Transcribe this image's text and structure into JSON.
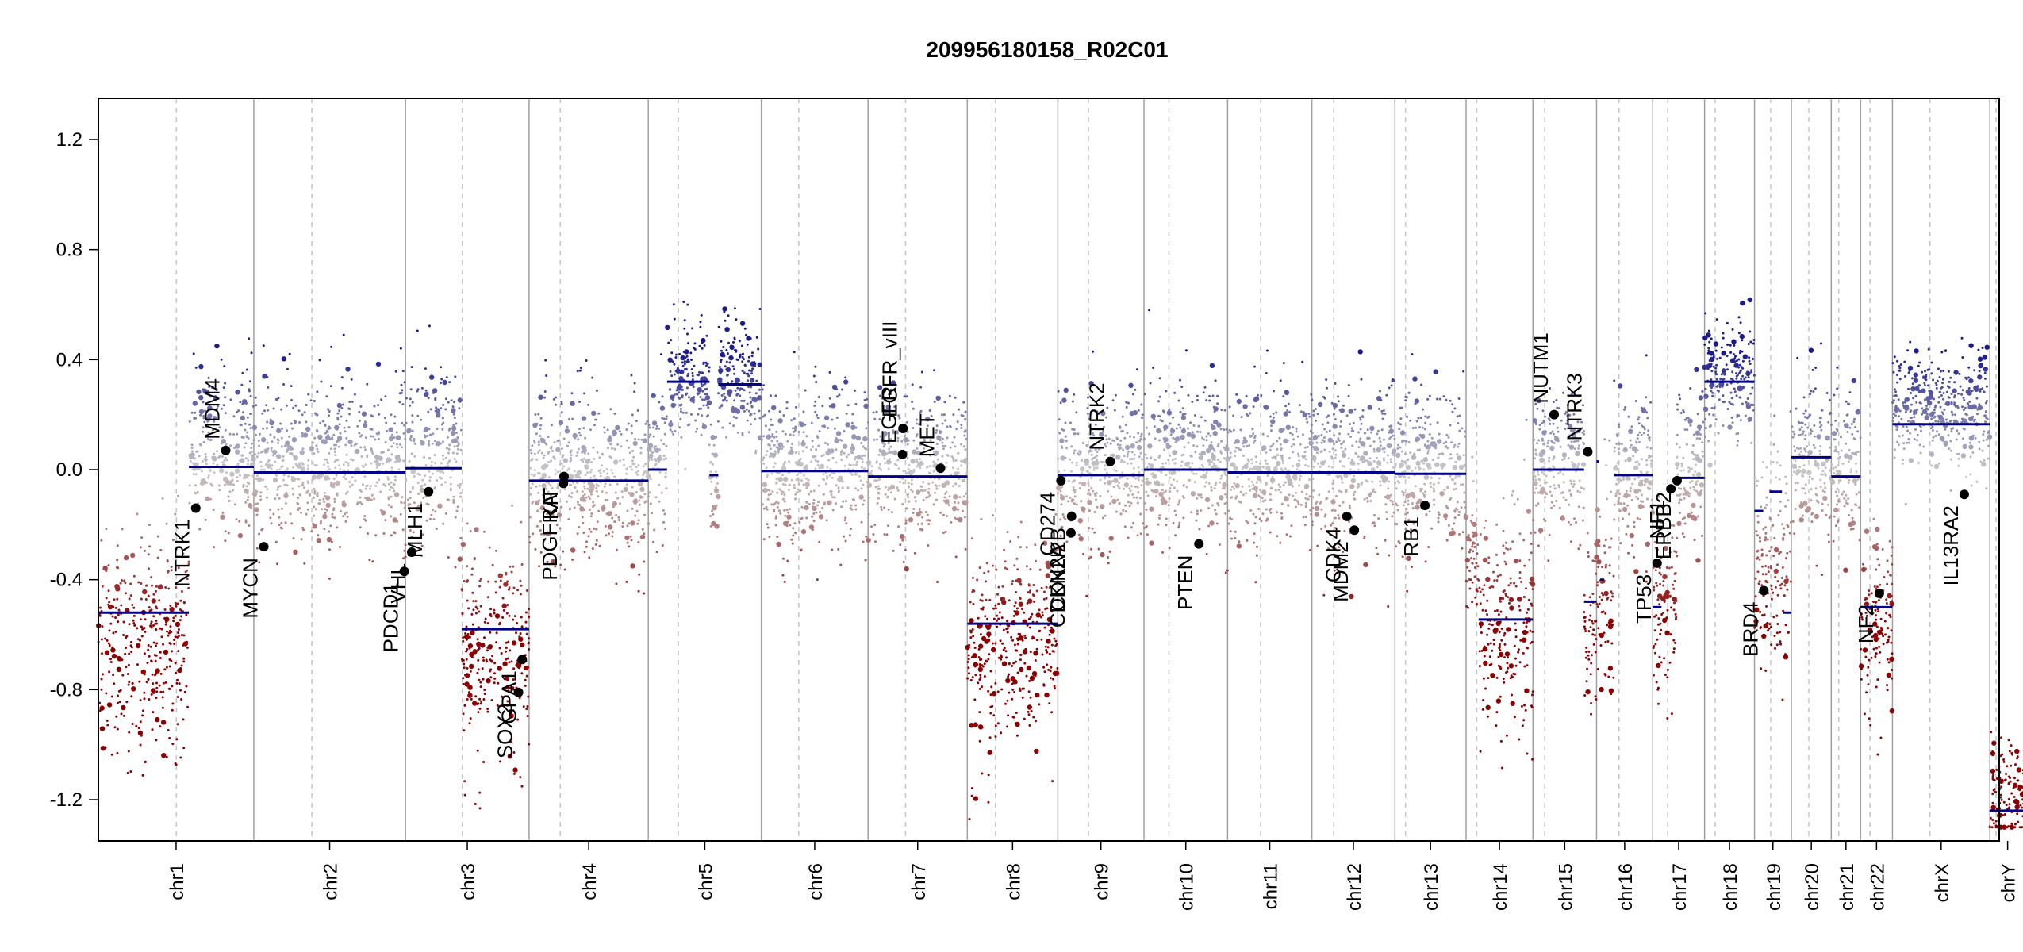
{
  "chart_data": {
    "type": "scatter",
    "title": "209956180158_R02C01",
    "xlabel": "",
    "ylabel": "",
    "ylim": [
      -1.35,
      1.35
    ],
    "yticks": [
      1.2,
      0.8,
      0.4,
      0.0,
      -0.4,
      -0.8,
      -1.2
    ],
    "ytick_labels": [
      "1.2",
      "0.8",
      "0.4",
      "0.0",
      "-0.4",
      "-0.8",
      "-1.2"
    ],
    "xlim": [
      0,
      3045
    ],
    "colors": {
      "gain": "#1a1a8c",
      "loss": "#8b0000",
      "neutral": "#c8c8c8",
      "segment": "#00008b",
      "gene_point": "#000000"
    },
    "chromosomes": [
      {
        "name": "chr1",
        "length": 249,
        "centromere": 125
      },
      {
        "name": "chr2",
        "length": 243,
        "centromere": 93
      },
      {
        "name": "chr3",
        "length": 198,
        "centromere": 91
      },
      {
        "name": "chr4",
        "length": 191,
        "centromere": 50
      },
      {
        "name": "chr5",
        "length": 181,
        "centromere": 48
      },
      {
        "name": "chr6",
        "length": 171,
        "centromere": 60
      },
      {
        "name": "chr7",
        "length": 159,
        "centromere": 60
      },
      {
        "name": "chr8",
        "length": 145,
        "centromere": 45
      },
      {
        "name": "chr9",
        "length": 138,
        "centromere": 49
      },
      {
        "name": "chr10",
        "length": 134,
        "centromere": 40
      },
      {
        "name": "chr11",
        "length": 135,
        "centromere": 53
      },
      {
        "name": "chr12",
        "length": 133,
        "centromere": 35
      },
      {
        "name": "chr13",
        "length": 114,
        "centromere": 17
      },
      {
        "name": "chr14",
        "length": 107,
        "centromere": 17
      },
      {
        "name": "chr15",
        "length": 102,
        "centromere": 19
      },
      {
        "name": "chr16",
        "length": 90,
        "centromere": 36
      },
      {
        "name": "chr17",
        "length": 83,
        "centromere": 24
      },
      {
        "name": "chr18",
        "length": 80,
        "centromere": 17
      },
      {
        "name": "chr19",
        "length": 59,
        "centromere": 26
      },
      {
        "name": "chr20",
        "length": 64,
        "centromere": 28
      },
      {
        "name": "chr21",
        "length": 47,
        "centromere": 12
      },
      {
        "name": "chr22",
        "length": 51,
        "centromere": 15
      },
      {
        "name": "chrX",
        "length": 156,
        "centromere": 60
      },
      {
        "name": "chrY",
        "length": 57,
        "centromere": 10
      }
    ],
    "segments": [
      {
        "chr": "chr1",
        "start": 0,
        "end": 145,
        "value": -0.52
      },
      {
        "chr": "chr1",
        "start": 145,
        "end": 249,
        "value": 0.01
      },
      {
        "chr": "chr2",
        "start": 0,
        "end": 243,
        "value": -0.01
      },
      {
        "chr": "chr3",
        "start": 0,
        "end": 90,
        "value": 0.005
      },
      {
        "chr": "chr3",
        "start": 90,
        "end": 198,
        "value": -0.58
      },
      {
        "chr": "chr4",
        "start": 0,
        "end": 191,
        "value": -0.04
      },
      {
        "chr": "chr5",
        "start": 0,
        "end": 30,
        "value": 0.0
      },
      {
        "chr": "chr5",
        "start": 30,
        "end": 98,
        "value": 0.32
      },
      {
        "chr": "chr5",
        "start": 98,
        "end": 112,
        "value": -0.02
      },
      {
        "chr": "chr5",
        "start": 112,
        "end": 181,
        "value": 0.31
      },
      {
        "chr": "chr6",
        "start": 0,
        "end": 171,
        "value": -0.005
      },
      {
        "chr": "chr7",
        "start": 0,
        "end": 159,
        "value": -0.025
      },
      {
        "chr": "chr8",
        "start": 0,
        "end": 145,
        "value": -0.56
      },
      {
        "chr": "chr9",
        "start": 0,
        "end": 138,
        "value": -0.02
      },
      {
        "chr": "chr10",
        "start": 0,
        "end": 134,
        "value": 0.0
      },
      {
        "chr": "chr11",
        "start": 0,
        "end": 135,
        "value": -0.01
      },
      {
        "chr": "chr12",
        "start": 0,
        "end": 133,
        "value": -0.01
      },
      {
        "chr": "chr13",
        "start": 0,
        "end": 114,
        "value": -0.015
      },
      {
        "chr": "chr14",
        "start": 20,
        "end": 107,
        "value": -0.545
      },
      {
        "chr": "chr15",
        "start": 0,
        "end": 82,
        "value": 0.0
      },
      {
        "chr": "chr15",
        "start": 82,
        "end": 102,
        "value": -0.48
      },
      {
        "chr": "chr16",
        "start": 0,
        "end": 4,
        "value": 0.03
      },
      {
        "chr": "chr16",
        "start": 6,
        "end": 12,
        "value": -0.4
      },
      {
        "chr": "chr16",
        "start": 28,
        "end": 90,
        "value": -0.02
      },
      {
        "chr": "chr17",
        "start": 0,
        "end": 14,
        "value": -0.5
      },
      {
        "chr": "chr17",
        "start": 38,
        "end": 83,
        "value": -0.03
      },
      {
        "chr": "chr18",
        "start": 0,
        "end": 80,
        "value": 0.32
      },
      {
        "chr": "chr19",
        "start": 0,
        "end": 14,
        "value": -0.15
      },
      {
        "chr": "chr19",
        "start": 24,
        "end": 44,
        "value": -0.08
      },
      {
        "chr": "chr19",
        "start": 46,
        "end": 59,
        "value": -0.52
      },
      {
        "chr": "chr20",
        "start": 0,
        "end": 64,
        "value": 0.045
      },
      {
        "chr": "chr21",
        "start": 0,
        "end": 47,
        "value": -0.025
      },
      {
        "chr": "chr22",
        "start": 0,
        "end": 51,
        "value": -0.5
      },
      {
        "chr": "chrX",
        "start": 0,
        "end": 156,
        "value": 0.165
      },
      {
        "chr": "chrY",
        "start": 0,
        "end": 57,
        "value": -1.24
      }
    ],
    "genes": [
      {
        "name": "NTRK1",
        "chr": "chr1",
        "pos": 156,
        "value": -0.14
      },
      {
        "name": "MDM4",
        "chr": "chr1",
        "pos": 204,
        "value": 0.07
      },
      {
        "name": "MYCN",
        "chr": "chr2",
        "pos": 16,
        "value": -0.28
      },
      {
        "name": "PDCD1",
        "chr": "chr2",
        "pos": 241,
        "value": -0.37
      },
      {
        "name": "VHL",
        "chr": "chr3",
        "pos": 10,
        "value": -0.3
      },
      {
        "name": "MLH1",
        "chr": "chr3",
        "pos": 37,
        "value": -0.08
      },
      {
        "name": "SOX2",
        "chr": "chr3",
        "pos": 181,
        "value": -0.81
      },
      {
        "name": "GPA1",
        "chr": "chr3",
        "pos": 187,
        "value": -0.69
      },
      {
        "name": "PDGFRA",
        "chr": "chr4",
        "pos": 55,
        "value": -0.05
      },
      {
        "name": "KIT",
        "chr": "chr4",
        "pos": 56,
        "value": -0.025
      },
      {
        "name": "EGFR",
        "chr": "chr7",
        "pos": 55,
        "value": 0.055
      },
      {
        "name": "EGFR_vIII",
        "chr": "chr7",
        "pos": 56,
        "value": 0.15
      },
      {
        "name": "MET",
        "chr": "chr7",
        "pos": 116,
        "value": 0.005
      },
      {
        "name": "CD274",
        "chr": "chr9",
        "pos": 5,
        "value": -0.04
      },
      {
        "name": "CDKN2A",
        "chr": "chr9",
        "pos": 21,
        "value": -0.23
      },
      {
        "name": "CDKN2B",
        "chr": "chr9",
        "pos": 22,
        "value": -0.17
      },
      {
        "name": "NTRK2",
        "chr": "chr9",
        "pos": 84,
        "value": 0.03
      },
      {
        "name": "PTEN",
        "chr": "chr10",
        "pos": 88,
        "value": -0.27
      },
      {
        "name": "CDK4",
        "chr": "chr12",
        "pos": 56,
        "value": -0.17
      },
      {
        "name": "MDM2",
        "chr": "chr12",
        "pos": 68,
        "value": -0.22
      },
      {
        "name": "RB1",
        "chr": "chr13",
        "pos": 48,
        "value": -0.13
      },
      {
        "name": "NUTM1",
        "chr": "chr15",
        "pos": 34,
        "value": 0.2
      },
      {
        "name": "NTRK3",
        "chr": "chr15",
        "pos": 88,
        "value": 0.065
      },
      {
        "name": "TP53",
        "chr": "chr17",
        "pos": 7,
        "value": -0.34
      },
      {
        "name": "NF1",
        "chr": "chr17",
        "pos": 29,
        "value": -0.07
      },
      {
        "name": "ERBB2",
        "chr": "chr17",
        "pos": 39,
        "value": -0.04
      },
      {
        "name": "BRD4",
        "chr": "chr19",
        "pos": 15,
        "value": -0.44
      },
      {
        "name": "NF2",
        "chr": "chr22",
        "pos": 30,
        "value": -0.45
      },
      {
        "name": "IL13RA2",
        "chr": "chrX",
        "pos": 115,
        "value": -0.09
      }
    ],
    "noise_profiles": [
      {
        "chr": "chr1",
        "ranges": [
          [
            0,
            145,
            -0.62,
            0.2
          ],
          [
            145,
            249,
            0.08,
            0.14
          ]
        ]
      },
      {
        "chr": "chr2",
        "ranges": [
          [
            0,
            243,
            0.02,
            0.14
          ]
        ]
      },
      {
        "chr": "chr3",
        "ranges": [
          [
            0,
            90,
            0.05,
            0.15
          ],
          [
            90,
            198,
            -0.65,
            0.2
          ]
        ]
      },
      {
        "chr": "chr4",
        "ranges": [
          [
            0,
            191,
            -0.03,
            0.15
          ]
        ]
      },
      {
        "chr": "chr5",
        "ranges": [
          [
            0,
            30,
            0.0,
            0.14
          ],
          [
            30,
            98,
            0.33,
            0.1
          ],
          [
            98,
            112,
            -0.05,
            0.1
          ],
          [
            112,
            181,
            0.33,
            0.1
          ]
        ]
      },
      {
        "chr": "chr6",
        "ranges": [
          [
            0,
            171,
            0.0,
            0.14
          ]
        ]
      },
      {
        "chr": "chr7",
        "ranges": [
          [
            0,
            159,
            0.0,
            0.14
          ]
        ]
      },
      {
        "chr": "chr8",
        "ranges": [
          [
            0,
            145,
            -0.62,
            0.2
          ]
        ]
      },
      {
        "chr": "chr9",
        "ranges": [
          [
            0,
            138,
            0.0,
            0.14
          ]
        ]
      },
      {
        "chr": "chr10",
        "ranges": [
          [
            0,
            134,
            0.03,
            0.14
          ]
        ]
      },
      {
        "chr": "chr11",
        "ranges": [
          [
            0,
            135,
            0.02,
            0.14
          ]
        ]
      },
      {
        "chr": "chr12",
        "ranges": [
          [
            0,
            133,
            0.02,
            0.14
          ]
        ]
      },
      {
        "chr": "chr13",
        "ranges": [
          [
            0,
            114,
            0.0,
            0.14
          ]
        ]
      },
      {
        "chr": "chr14",
        "ranges": [
          [
            0,
            20,
            -0.3,
            0.1
          ],
          [
            20,
            107,
            -0.58,
            0.2
          ]
        ]
      },
      {
        "chr": "chr15",
        "ranges": [
          [
            0,
            82,
            0.03,
            0.14
          ],
          [
            82,
            102,
            -0.55,
            0.18
          ]
        ]
      },
      {
        "chr": "chr16",
        "ranges": [
          [
            0,
            28,
            -0.45,
            0.18
          ],
          [
            28,
            90,
            0.0,
            0.14
          ]
        ]
      },
      {
        "chr": "chr17",
        "ranges": [
          [
            0,
            38,
            -0.5,
            0.18
          ],
          [
            38,
            83,
            0.0,
            0.14
          ]
        ]
      },
      {
        "chr": "chr18",
        "ranges": [
          [
            0,
            80,
            0.33,
            0.1
          ]
        ]
      },
      {
        "chr": "chr19",
        "ranges": [
          [
            0,
            59,
            -0.35,
            0.22
          ]
        ]
      },
      {
        "chr": "chr20",
        "ranges": [
          [
            0,
            64,
            0.05,
            0.14
          ]
        ]
      },
      {
        "chr": "chr21",
        "ranges": [
          [
            0,
            47,
            0.0,
            0.14
          ]
        ]
      },
      {
        "chr": "chr22",
        "ranges": [
          [
            0,
            51,
            -0.55,
            0.15
          ]
        ]
      },
      {
        "chr": "chrX",
        "ranges": [
          [
            0,
            156,
            0.22,
            0.1
          ]
        ]
      },
      {
        "chr": "chrY",
        "ranges": [
          [
            0,
            57,
            -1.2,
            0.1
          ]
        ]
      }
    ]
  }
}
